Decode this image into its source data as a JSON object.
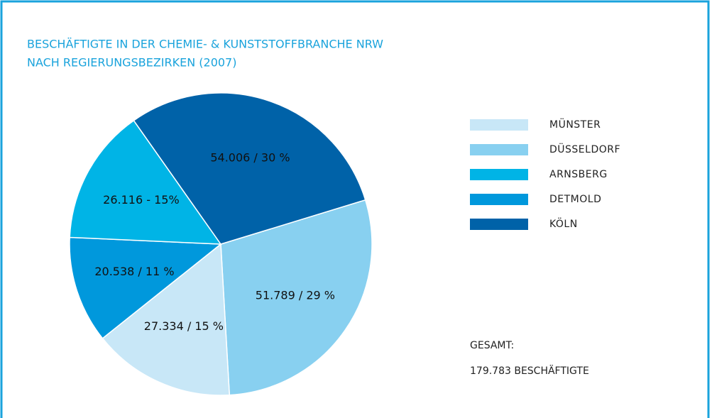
{
  "chart_data": {
    "type": "pie",
    "title": [
      "BESCHÄFTIGTE IN DER CHEMIE- & KUNSTSTOFFBRANCHE NRW",
      "NACH REGIERUNGSBEZIRKEN (2007)"
    ],
    "categories": [
      "MÜNSTER",
      "DÜSSELDORF",
      "ARNSBERG",
      "DETMOLD",
      "KÖLN"
    ],
    "values": [
      27334,
      51789,
      26116,
      20538,
      54006
    ],
    "value_labels": [
      "27.334 / 15 %",
      "51.789 / 29 %",
      "26.116 - 15%",
      "20.538 / 11 %",
      "54.006 / 30 %"
    ],
    "colors": [
      "#c8e7f7",
      "#88d0f0",
      "#00b4e6",
      "#0098dc",
      "#0062a8"
    ],
    "legend": "right",
    "total_label": "GESAMT:",
    "total": "179.783 BESCHÄFTIGTE"
  }
}
